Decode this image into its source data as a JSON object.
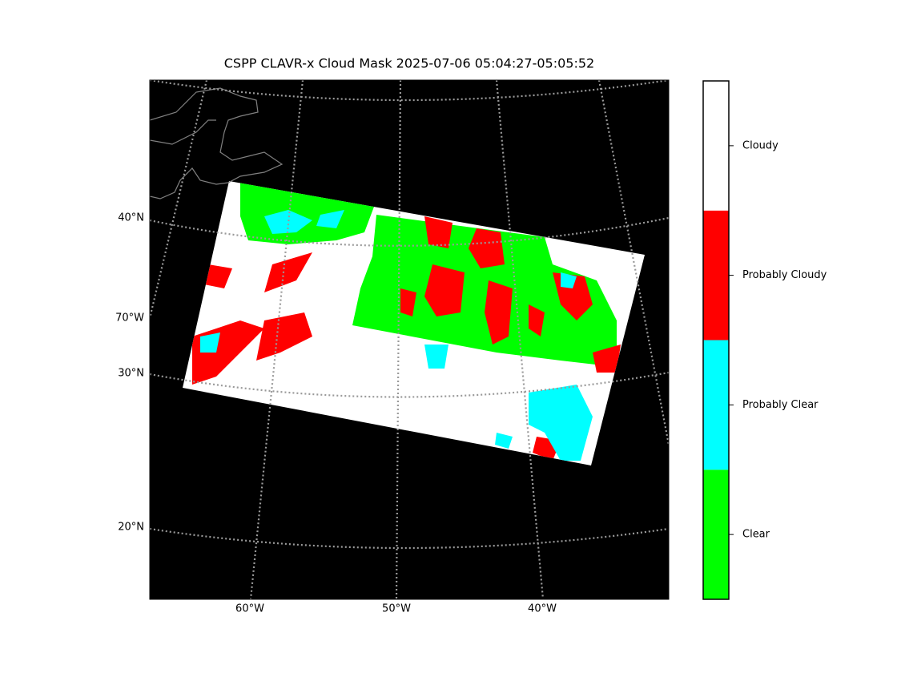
{
  "title": "CSPP CLAVR-x Cloud Mask 2025-07-06 05:04:27-05:05:52",
  "map": {
    "lat_labels": [
      "40°N",
      "70°W",
      "30°N",
      "20°N"
    ],
    "lon_labels": [
      "60°W",
      "50°W",
      "40°W"
    ]
  },
  "colorbar": {
    "classes": [
      {
        "name": "Clear",
        "color": "#00ff00"
      },
      {
        "name": "Probably Clear",
        "color": "#00ffff"
      },
      {
        "name": "Probably Cloudy",
        "color": "#ff0000"
      },
      {
        "name": "Cloudy",
        "color": "#ffffff"
      }
    ]
  }
}
